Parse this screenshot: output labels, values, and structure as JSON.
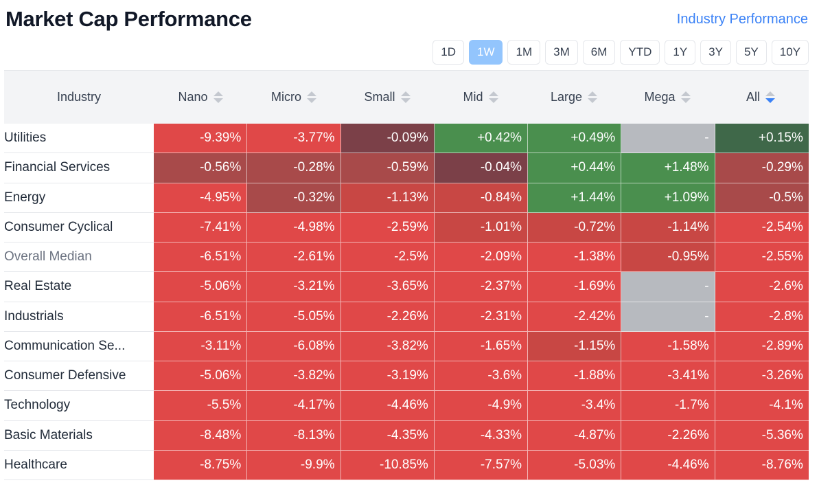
{
  "header": {
    "title": "Market Cap Performance",
    "link": "Industry Performance"
  },
  "periods": [
    {
      "label": "1D",
      "active": false
    },
    {
      "label": "1W",
      "active": true
    },
    {
      "label": "1M",
      "active": false
    },
    {
      "label": "3M",
      "active": false
    },
    {
      "label": "6M",
      "active": false
    },
    {
      "label": "YTD",
      "active": false
    },
    {
      "label": "1Y",
      "active": false
    },
    {
      "label": "3Y",
      "active": false
    },
    {
      "label": "5Y",
      "active": false
    },
    {
      "label": "10Y",
      "active": false
    }
  ],
  "table": {
    "industry_header": "Industry",
    "columns": [
      "Nano",
      "Micro",
      "Small",
      "Mid",
      "Large",
      "Mega",
      "All"
    ],
    "sorted_column": "All",
    "sort_direction": "desc",
    "colors": {
      "strong_neg": "#e04848",
      "mid_neg": "#c84744",
      "weak_neg": "#a84a4a",
      "near_zero_neg": "#7b4048",
      "pos": "#4a8f4e",
      "weak_pos": "#3f6849",
      "empty": "#b7babf"
    },
    "rows": [
      {
        "industry": "Utilities",
        "values": [
          "-9.39%",
          "-3.77%",
          "-0.09%",
          "+0.42%",
          "+0.49%",
          "-",
          "+0.15%"
        ]
      },
      {
        "industry": "Financial Services",
        "values": [
          "-0.56%",
          "-0.28%",
          "-0.59%",
          "-0.04%",
          "+0.44%",
          "+1.48%",
          "-0.29%"
        ]
      },
      {
        "industry": "Energy",
        "values": [
          "-4.95%",
          "-0.32%",
          "-1.13%",
          "-0.84%",
          "+1.44%",
          "+1.09%",
          "-0.5%"
        ]
      },
      {
        "industry": "Consumer Cyclical",
        "values": [
          "-7.41%",
          "-4.98%",
          "-2.59%",
          "-1.01%",
          "-0.72%",
          "-1.14%",
          "-2.54%"
        ]
      },
      {
        "industry": "Overall Median",
        "values": [
          "-6.51%",
          "-2.61%",
          "-2.5%",
          "-2.09%",
          "-1.38%",
          "-0.95%",
          "-2.55%"
        ]
      },
      {
        "industry": "Real Estate",
        "values": [
          "-5.06%",
          "-3.21%",
          "-3.65%",
          "-2.37%",
          "-1.69%",
          "-",
          "-2.6%"
        ]
      },
      {
        "industry": "Industrials",
        "values": [
          "-6.51%",
          "-5.05%",
          "-2.26%",
          "-2.31%",
          "-2.42%",
          "-",
          "-2.8%"
        ]
      },
      {
        "industry": "Communication Se...",
        "values": [
          "-3.11%",
          "-6.08%",
          "-3.82%",
          "-1.65%",
          "-1.15%",
          "-1.58%",
          "-2.89%"
        ]
      },
      {
        "industry": "Consumer Defensive",
        "values": [
          "-5.06%",
          "-3.82%",
          "-3.19%",
          "-3.6%",
          "-1.88%",
          "-3.41%",
          "-3.26%"
        ]
      },
      {
        "industry": "Technology",
        "values": [
          "-5.5%",
          "-4.17%",
          "-4.46%",
          "-4.9%",
          "-3.4%",
          "-1.7%",
          "-4.1%"
        ]
      },
      {
        "industry": "Basic Materials",
        "values": [
          "-8.48%",
          "-8.13%",
          "-4.35%",
          "-4.33%",
          "-4.87%",
          "-2.26%",
          "-5.36%"
        ]
      },
      {
        "industry": "Healthcare",
        "values": [
          "-8.75%",
          "-9.9%",
          "-10.85%",
          "-7.57%",
          "-5.03%",
          "-4.46%",
          "-8.76%"
        ]
      }
    ]
  }
}
